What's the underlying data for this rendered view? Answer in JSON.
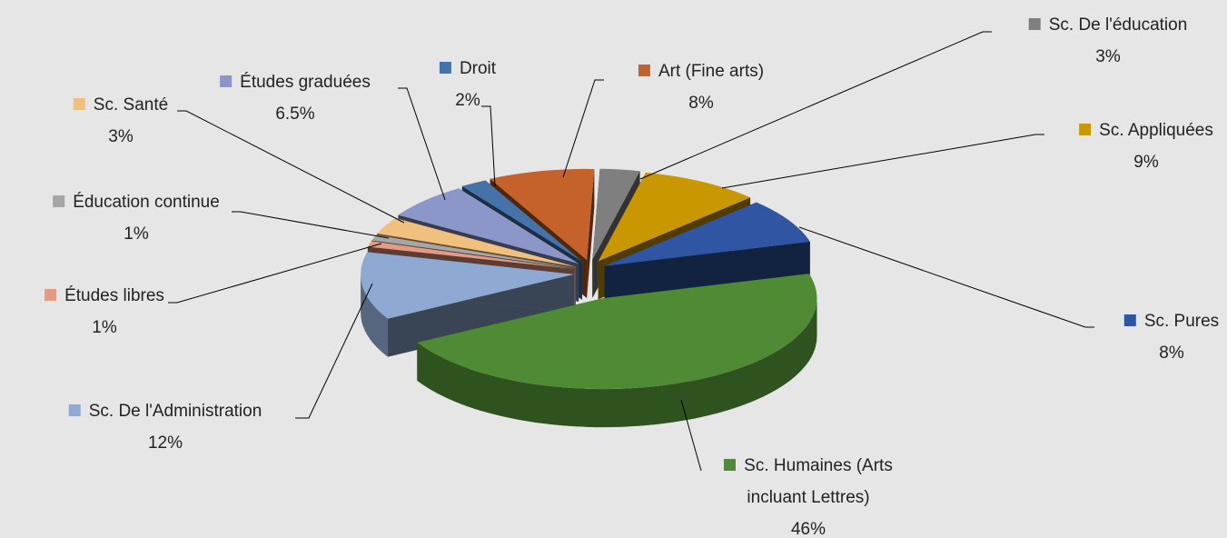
{
  "chart_data": {
    "type": "pie3d",
    "categories": [
      "Sc. De l'éducation",
      "Sc. Appliquées",
      "Sc. Pures",
      "Sc. Humaines (Arts incluant Lettres)",
      "Sc. De l'Administration",
      "Études libres",
      "Éducation continue",
      "Sc. Santé",
      "Études graduées",
      "Droit",
      "Art (Fine arts)"
    ],
    "values": [
      3,
      9,
      8,
      46,
      12,
      1,
      1,
      3,
      6.5,
      2,
      8
    ],
    "value_labels": [
      "3%",
      "9%",
      "8%",
      "46%",
      "12%",
      "1%",
      "1%",
      "3%",
      "6.5%",
      "2%",
      "8%"
    ],
    "colors": [
      "#7f7f7f",
      "#c99700",
      "#2f55a3",
      "#4f8a34",
      "#8eaad3",
      "#e79a82",
      "#a6a6a6",
      "#f0c07e",
      "#8c96c8",
      "#4573a9",
      "#c5612a"
    ]
  }
}
